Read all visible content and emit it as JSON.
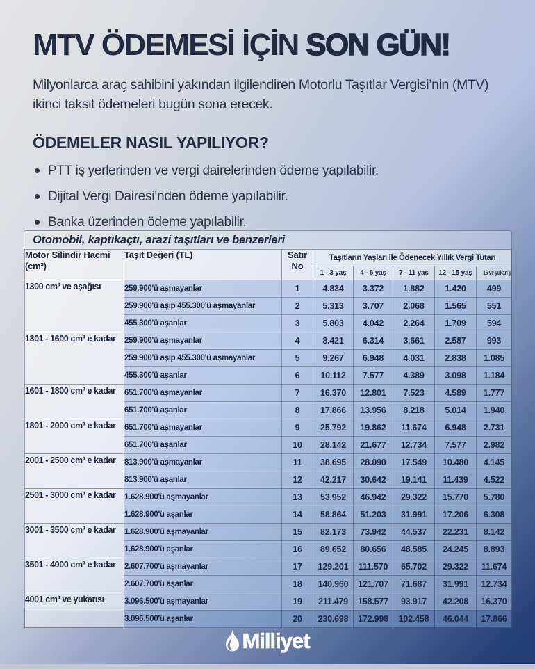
{
  "header": {
    "title_regular": "MTV ÖDEMESİ İÇİN ",
    "title_emphasis": "SON GÜN!",
    "intro": "Milyonlarca araç sahibini yakından ilgilendiren Motorlu Taşıtlar Vergisi’nin (MTV) ikinci taksit ödemeleri bugün sona erecek."
  },
  "payments": {
    "heading": "ÖDEMELER NASIL YAPILIYOR?",
    "bullets": [
      "PTT iş yerlerinden ve vergi dairelerinden ödeme yapılabilir.",
      "Dijital Vergi Dairesi’nden ödeme yapılabilir.",
      "Banka üzerinden ödeme yapılabilir."
    ]
  },
  "table": {
    "title": "Otomobil, kaptıkaçtı, arazi taşıtları ve benzerleri",
    "col_engine": "Motor Silindir Hacmi (cm³)",
    "col_value": "Taşıt Değeri (TL)",
    "col_row_no": "Satır No",
    "col_tax_group": "Taşıtların Yaşları ile Ödenecek Yıllık Vergi Tutarı",
    "age_columns": [
      "1 - 3 yaş",
      "4 - 6 yaş",
      "7 - 11 yaş",
      "12 - 15 yaş",
      "16 ve yukarı yaş"
    ],
    "groups": [
      {
        "engine": "1300 cm³ ve aşağısı",
        "rows": [
          {
            "band": "259.900'ü aşmayanlar",
            "no": "1",
            "values": [
              "4.834",
              "3.372",
              "1.882",
              "1.420",
              "499"
            ]
          },
          {
            "band": "259.900'ü aşıp 455.300'ü aşmayanlar",
            "no": "2",
            "values": [
              "5.313",
              "3.707",
              "2.068",
              "1.565",
              "551"
            ]
          },
          {
            "band": "455.300'ü aşanlar",
            "no": "3",
            "values": [
              "5.803",
              "4.042",
              "2.264",
              "1.709",
              "594"
            ]
          }
        ]
      },
      {
        "engine": "1301 - 1600 cm³ e kadar",
        "rows": [
          {
            "band": "259.900'ü aşmayanlar",
            "no": "4",
            "values": [
              "8.421",
              "6.314",
              "3.661",
              "2.587",
              "993"
            ]
          },
          {
            "band": "259.900'ü aşıp 455.300'ü aşmayanlar",
            "no": "5",
            "values": [
              "9.267",
              "6.948",
              "4.031",
              "2.838",
              "1.085"
            ]
          },
          {
            "band": "455.300'ü aşanlar",
            "no": "6",
            "values": [
              "10.112",
              "7.577",
              "4.389",
              "3.098",
              "1.184"
            ]
          }
        ]
      },
      {
        "engine": "1601 - 1800 cm³ e kadar",
        "rows": [
          {
            "band": "651.700'ü aşmayanlar",
            "no": "7",
            "values": [
              "16.370",
              "12.801",
              "7.523",
              "4.589",
              "1.777"
            ]
          },
          {
            "band": "651.700'ü aşanlar",
            "no": "8",
            "values": [
              "17.866",
              "13.956",
              "8.218",
              "5.014",
              "1.940"
            ]
          }
        ]
      },
      {
        "engine": "1801 - 2000 cm³ e kadar",
        "rows": [
          {
            "band": "651.700'ü aşmayanlar",
            "no": "9",
            "values": [
              "25.792",
              "19.862",
              "11.674",
              "6.948",
              "2.731"
            ]
          },
          {
            "band": "651.700'ü aşanlar",
            "no": "10",
            "values": [
              "28.142",
              "21.677",
              "12.734",
              "7.577",
              "2.982"
            ]
          }
        ]
      },
      {
        "engine": "2001 - 2500 cm³ e kadar",
        "rows": [
          {
            "band": "813.900'ü aşmayanlar",
            "no": "11",
            "values": [
              "38.695",
              "28.090",
              "17.549",
              "10.480",
              "4.145"
            ]
          },
          {
            "band": "813.900'ü aşanlar",
            "no": "12",
            "values": [
              "42.217",
              "30.642",
              "19.141",
              "11.439",
              "4.522"
            ]
          }
        ]
      },
      {
        "engine": "2501 - 3000 cm³ e kadar",
        "rows": [
          {
            "band": "1.628.900'ü aşmayanlar",
            "no": "13",
            "values": [
              "53.952",
              "46.942",
              "29.322",
              "15.770",
              "5.780"
            ]
          },
          {
            "band": "1.628.900'ü aşanlar",
            "no": "14",
            "values": [
              "58.864",
              "51.203",
              "31.991",
              "17.206",
              "6.308"
            ]
          }
        ]
      },
      {
        "engine": "3001 - 3500 cm³ e kadar",
        "rows": [
          {
            "band": "1.628.900'ü aşmayanlar",
            "no": "15",
            "values": [
              "82.173",
              "73.942",
              "44.537",
              "22.231",
              "8.142"
            ]
          },
          {
            "band": "1.628.900'ü aşanlar",
            "no": "16",
            "values": [
              "89.652",
              "80.656",
              "48.585",
              "24.245",
              "8.893"
            ]
          }
        ]
      },
      {
        "engine": "3501 - 4000 cm³ e kadar",
        "rows": [
          {
            "band": "2.607.700'ü aşmayanlar",
            "no": "17",
            "values": [
              "129.201",
              "111.570",
              "65.702",
              "29.322",
              "11.674"
            ]
          },
          {
            "band": "2.607.700'ü aşanlar",
            "no": "18",
            "values": [
              "140.960",
              "121.707",
              "71.687",
              "31.991",
              "12.734"
            ]
          }
        ]
      },
      {
        "engine": "4001 cm³ ve yukarısı",
        "rows": [
          {
            "band": "3.096.500'ü aşmayanlar",
            "no": "19",
            "values": [
              "211.479",
              "158.577",
              "93.917",
              "42.208",
              "16.370"
            ]
          },
          {
            "band": "3.096.500'ü aşanlar",
            "no": "20",
            "values": [
              "230.698",
              "172.998",
              "102.458",
              "46.044",
              "17.866"
            ]
          }
        ]
      }
    ]
  },
  "footer": {
    "brand": "Milliyet"
  },
  "colors": {
    "headline": "#222b43",
    "body_text": "#2b3449",
    "table_text": "#1d2742",
    "cell_tint": "rgba(150,185,235,0.35)",
    "panel_light": "rgba(255,255,255,0.45)",
    "bottom_strip": "#c2c7d3",
    "footer_dark_blue": "#2d4c8e",
    "brand_text": "#ffffff"
  }
}
